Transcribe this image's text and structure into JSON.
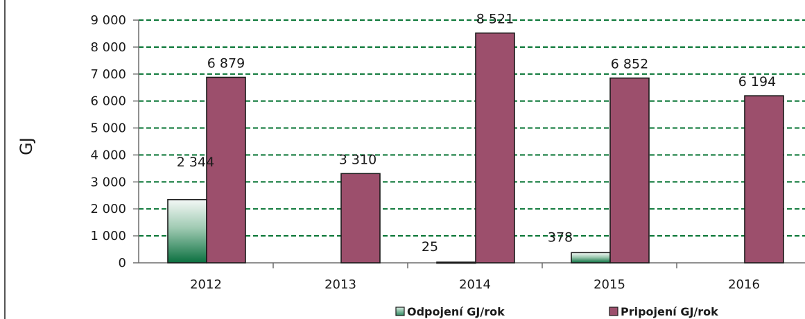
{
  "chart_data": {
    "type": "bar",
    "title": "",
    "xlabel": "",
    "ylabel": "GJ",
    "ylim": [
      0,
      9000
    ],
    "yticks": [
      0,
      1000,
      2000,
      3000,
      4000,
      5000,
      6000,
      7000,
      8000,
      9000
    ],
    "ytick_labels": [
      "0",
      "1 000",
      "2 000",
      "3 000",
      "4 000",
      "5 000",
      "6 000",
      "7 000",
      "8 000",
      "9 000"
    ],
    "categories": [
      "2012",
      "2013",
      "2014",
      "2015",
      "2016"
    ],
    "grid": true,
    "legend_position": "bottom",
    "series": [
      {
        "name": "Odpojení GJ/rok",
        "values": [
          2344,
          null,
          25,
          378,
          null
        ],
        "labels": [
          "2 344",
          "",
          "25",
          "378",
          ""
        ],
        "color": "#0f7a45"
      },
      {
        "name": "Pripojení GJ/rok",
        "values": [
          6879,
          3310,
          8521,
          6852,
          6194
        ],
        "labels": [
          "6 879",
          "3 310",
          "8 521",
          "6 852",
          "6 194"
        ],
        "color": "#9c4f6c"
      }
    ],
    "colors": {
      "grid": "#117a3c",
      "axis": "#6b6b6b"
    }
  }
}
